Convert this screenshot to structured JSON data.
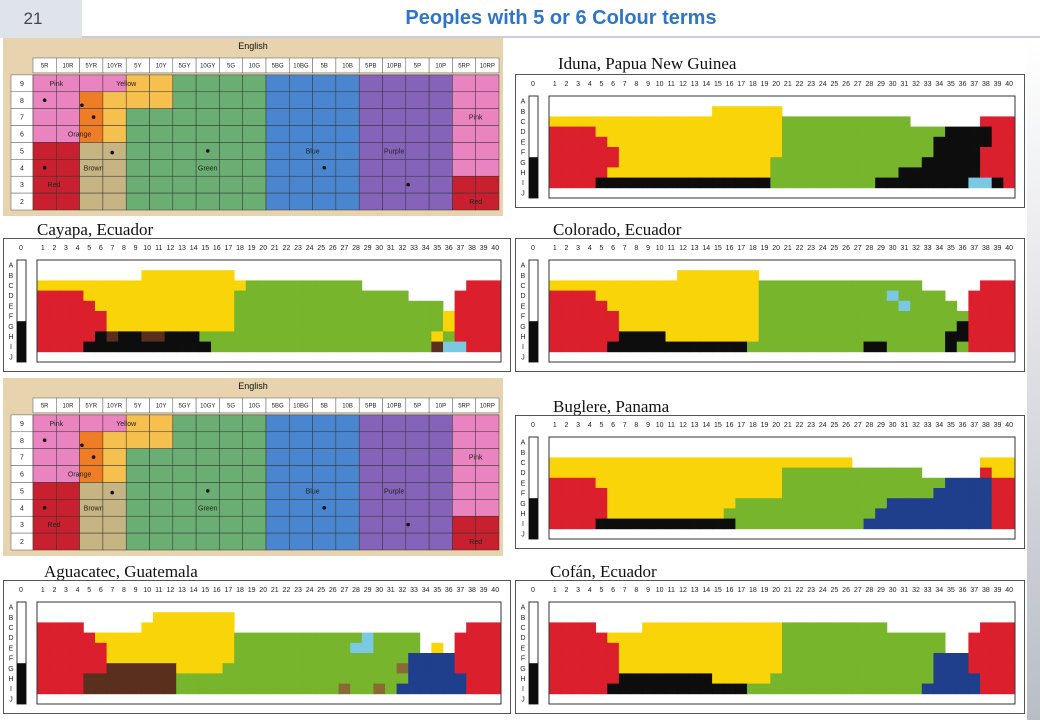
{
  "slide_number": "21",
  "title": "Peoples with 5 or 6 Colour terms",
  "column_numbers": [
    "1",
    "2",
    "3",
    "4",
    "5",
    "6",
    "7",
    "8",
    "9",
    "10",
    "11",
    "12",
    "13",
    "14",
    "15",
    "16",
    "17",
    "18",
    "19",
    "20",
    "21",
    "22",
    "23",
    "24",
    "25",
    "26",
    "27",
    "28",
    "29",
    "30",
    "31",
    "32",
    "33",
    "34",
    "35",
    "36",
    "37",
    "38",
    "39",
    "40"
  ],
  "row_letters": [
    "A",
    "B",
    "C",
    "D",
    "E",
    "F",
    "G",
    "H",
    "I",
    "J"
  ],
  "achromatic_label": "0",
  "colors": {
    "R": "#dc1f2c",
    "Y": "#f9d409",
    "G": "#77b52c",
    "B": "#1f3f8c",
    "K": "#0d0d0d",
    "L": "#7bc8e2",
    "N": "#5a2f1e",
    "O": "#8a6a34",
    "W": "#ffffff"
  },
  "english_chart": {
    "title": "English",
    "columns": [
      "5R",
      "10R",
      "5YR",
      "10YR",
      "5Y",
      "10Y",
      "5GY",
      "10GY",
      "5G",
      "10G",
      "5BG",
      "10BG",
      "5B",
      "10B",
      "5PB",
      "10PB",
      "5P",
      "10P",
      "5RP",
      "10RP"
    ],
    "rows": [
      "9",
      "8",
      "7",
      "6",
      "5",
      "4",
      "3",
      "2"
    ],
    "labels": [
      "Pink",
      "Yellow",
      "Orange",
      "Pink",
      "Blue",
      "Purple",
      "Brown",
      "Green",
      "Red",
      "Red"
    ],
    "colors": {
      "pink": "#e984c0",
      "orange": "#ee7d25",
      "yellow": "#f6c04e",
      "green": "#6aae74",
      "blue": "#4a86cf",
      "purple": "#8563b8",
      "red": "#c8202e",
      "brown": "#c6b483",
      "bg": "#e7d3ad"
    }
  },
  "panels": [
    {
      "name": "Iduna, Papua New Guinea",
      "grid": [
        "WWWWWWWWWWWWWWWWWWWWWWWWWWWWWWWWWWWWWWWW",
        "WWWWWWWWWWWWWWYYYYYYWWWWWWWWWWWWWWWWWWWW",
        "YYYYYYYYYYYYYYYYYYYYGGGGGGGGGGGWWWWWWRRR",
        "RRRRYYYYYYYYYYYYYYYYGGGGGGGGGGGGGGKKKKRR",
        "RRRRRYYYYYYYYYYYYYYYGGGGGGGGGGGGGKKKKKRR",
        "RRRRRRYYYYYYYYYYYYYYGGGGGGGGGGGGGKKKKRRR",
        "RRRRRRYYYYYYYYYYYYYGGGGGGGGGGGGGKKKKKRRR",
        "RRRRRYYYYYYYYYYYYYYGGGGGGGGGGGKKKKKKKRRR",
        "RRRRKKKKKKKKKKKKKKKGGGGGGGGGKKKKKKKKLLKR",
        "WWWWWWWWWWWWWWWWWWWWWWWWWWWWWWWWWWWWWWWW"
      ]
    },
    {
      "name": "Cayapa, Ecuador",
      "grid": [
        "WWWWWWWWWWWWWWWWWWWWWWWWWWWWWWWWWWWWWWWW",
        "WWWWWWWWWYYYYYYYYWWWWWWWWWWWWWWWWWWWWWWW",
        "YYYYYYYYYYYYYYYYYYGGGGGGGGGGWWWWWWWWWRRR",
        "RRRRYYYYYYYYYYYYYGGGGGGGGGGGGGGGWWWWRRRR",
        "RRRRRYYYYYYYYYYYYGGGGGGGGGGGGGGGGGGWRRRR",
        "RRRRRRYYYYYYYYYYYGGGGGGGGGGGGGGGGGGYRRRR",
        "RRRRRRYYYYYYYYYYYGGGGGGGGGGGGGGGGGGYRRRR",
        "RRRRRKNKKNNKKKGGGGGGGGGGGGGGGGGGGGYGRRRR",
        "RRRRKKKKKKKKKKKGGGGGGGGGGGGGGGGGGGNLLRRR",
        "WWWWWWWWWWWWWWWWWWWWWWWWWWWWWWWWWWWWWWWW"
      ]
    },
    {
      "name": "Colorado, Ecuador",
      "grid": [
        "WWWWWWWWWWWWWWWWWWWWWWWWWWWWWWWWWWWWWWWW",
        "WWWWWWWWWWWYYYYYYYWWWWWWWWWWWWWWWWWWWWWW",
        "YYYYYYYYYYYYYYYYYYGGGGGGGGGGGGGGWWWWWRRR",
        "RRRRYYYYYYYYYYYYYYGGGGGGGGGGGLGGGGWWRRRR",
        "RRRRRYYYYYYYYYYYYYGGGGGGGGGGGGLGGGGWRRRR",
        "RRRRRRYYYYYYYYYYYYGGGGGGGGGGGGGGGGGGRRRR",
        "RRRRRRYYYYYYYYYYYYGGGGGGGGGGGGGGGGGKRRRR",
        "RRRRRRKKKKYYYYYYYYGGGGGGGGGGGGGGGGKKRRRR",
        "RRRRRKKKKKKKKKKKKGGGGGGGGGGKKGGGGGKGRRRR",
        "WWWWWWWWWWWWWWWWWWWWWWWWWWWWWWWWWWWWWWWW"
      ]
    },
    {
      "name": "Buglere, Panama",
      "grid": [
        "WWWWWWWWWWWWWWWWWWWWWWWWWWWWWWWWWWWWWWWW",
        "WWWWWWWWWWWWWWWWWWWWWWWWWWWWWWWWWWWWWWWW",
        "YYYYYYYYYYYYYYYYYYYYYYYYYYWWWWWWWWWWWYYY",
        "YYYYYYYYYYYYYYYYYYYYGGGGGGGGGGGGWWWWWRYY",
        "RRRRYYYYYYYYYYYYYYYYGGGGGGGGGGGGGGBBBBRR",
        "RRRRRYYYYYYYYYYYYYYYGGGGGGGGGGGGGBBBBBRR",
        "RRRRRYYYYYYYYYYYGGGGGGGGGGGGGBBBBBBBBBRR",
        "RRRRRYYYYYYYYYYGGGGGGGGGGGGGBBBBBBBBBBRR",
        "RRRRKKKKKKKKKKKKGGGGGGGGGGGBBBBBBBBBBBRR",
        "WWWWWWWWWWWWWWWWWWWWWWWWWWWWWWWWWWWWWWWW"
      ]
    },
    {
      "name": "Aguacatec, Guatemala",
      "grid": [
        "WWWWWWWWWWWWWWWWWWWWWWWWWWWWWWWWWWWWWWWW",
        "WWWWWWWWWWYYYYYYYWWWWWWWWWWWWWWWWWWWWWWW",
        "RRRRWWWWWYYYYYYYYWWWWWWWWWWWWWWWWWWWWRRR",
        "RRRRRYYYYYYYYYYYYGGGGGGGGGGGLGGGGWWWRRRR",
        "RRRRRRYYYYYYYYYYYGGGGGGGGGGLLGGGGWYWRRRR",
        "RRRRRRYYYYYYYYYYYGGGGGGGGGGGGGGGBBBBRRRR",
        "RRRRRRNNNNNNYYYYGGGGGGGGGGGGGGGOBBBBRRRR",
        "RRRRNNNNNNNNGGGGGGGGGGGGGGGGGGGGBBBBBRRR",
        "RRRRNNNNNNNNGGGGGGGGGGGGGGOGGOGBBBBBBRRR",
        "WWWWWWWWWWWWWWWWWWWWWWWWWWWWWWWWWWWWWWWW"
      ]
    },
    {
      "name": "Cofán, Ecuador",
      "grid": [
        "WWWWWWWWWWWWWWWWWWWWWWWWWWWWWWWWWWWWWWWW",
        "WWWWWWWWWWWWWWWWWWWWWWWWWWWWWWWWWWWWWWWW",
        "RRRRWWWWYYYYYYYYYYYYGGGGGGGGGWWWWWWWWRRR",
        "RRRRRYYYYYYYYYYYYYYYGGGGGGGGGGGGGGWWRRRR",
        "RRRRRRYYYYYYYYYYYYYYGGGGGGGGGGGGGGWWRRRR",
        "RRRRRRYYYYYYYYYYYYYYGGGGGGGGGGGGGBBBRRRR",
        "RRRRRRYYYYYYYYYYYYYYGGGGGGGGGGGGGBBBRRRR",
        "RRRRRRKKKKKKKKYYYYYGGGGGGGGGGGGGGBBBBRRR",
        "RRRRRKKKKKKKKKKKKGGGGGGGGGGGGGGGBBBBBRRR",
        "WWWWWWWWWWWWWWWWWWWWWWWWWWWWWWWWWWWWWWWW"
      ]
    }
  ]
}
